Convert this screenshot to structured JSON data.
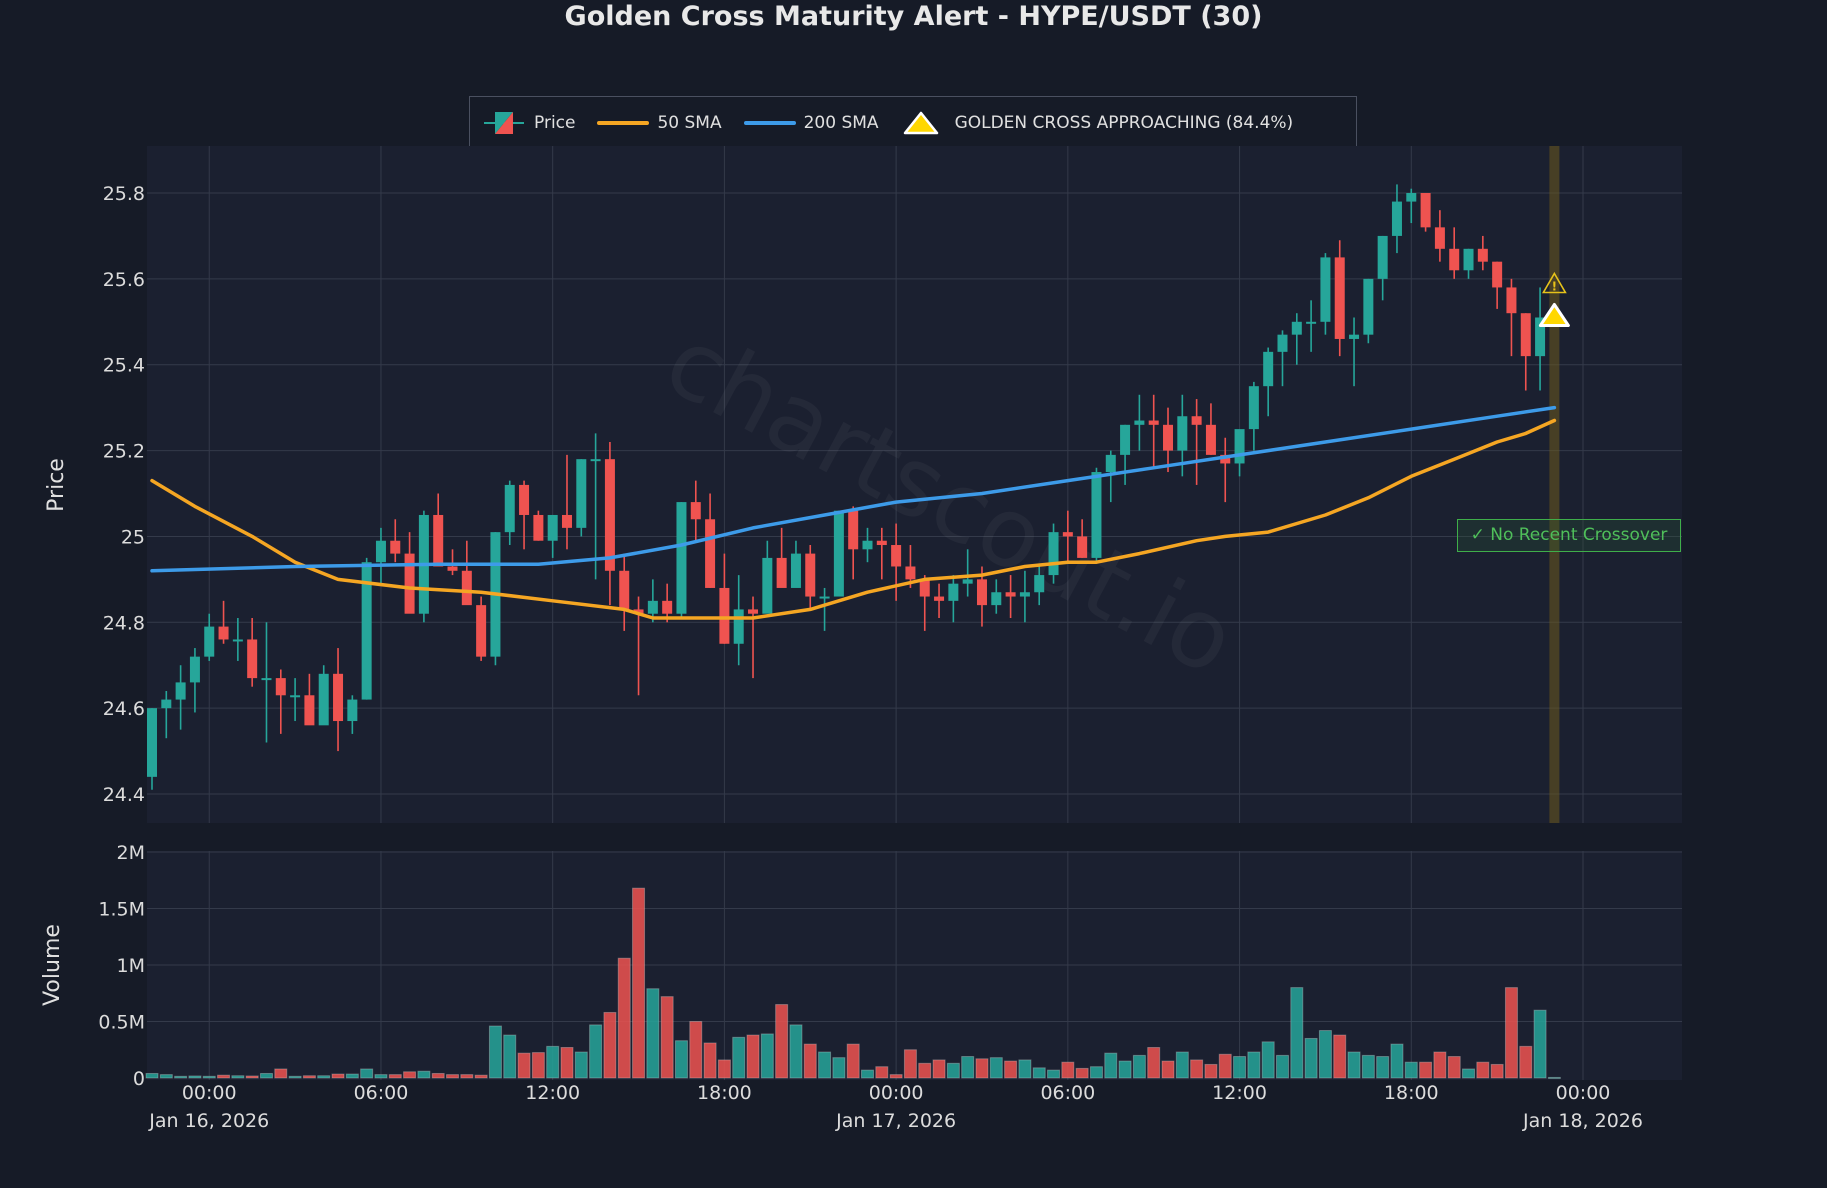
{
  "title": "Golden Cross Maturity Alert - HYPE/USDT (30)",
  "legend": {
    "price_label": "Price",
    "sma50_label": "50 SMA",
    "sma200_label": "200 SMA",
    "signal_label": "GOLDEN CROSS APPROACHING (84.4%)"
  },
  "annotation": {
    "no_crossover": "✓ No Recent Crossover",
    "warning_icon": "⚠"
  },
  "watermark": "chartscout.io",
  "colors": {
    "up": "#26a69a",
    "down": "#ef5350",
    "sma50": "#f5a623",
    "sma200": "#3d9be9",
    "signal": "#ffd700",
    "background": "#161b27",
    "plot_bg": "#1b2030"
  },
  "chart_data": {
    "type": "candlestick",
    "title": "Golden Cross Maturity Alert - HYPE/USDT (30)",
    "xlabel": "",
    "ylabel": "Price",
    "ylabel_volume": "Volume",
    "ylim": [
      24.35,
      25.9
    ],
    "volume_ylim": [
      0,
      2000000
    ],
    "y_ticks": [
      "24.4",
      "24.6",
      "24.8",
      "25",
      "25.2",
      "25.4",
      "25.6",
      "25.8"
    ],
    "volume_ticks": [
      "0",
      "0.5M",
      "1M",
      "1.5M",
      "2M"
    ],
    "x_ticks": [
      {
        "label": "00:00",
        "sub": "Jan 16, 2026"
      },
      {
        "label": "06:00",
        "sub": ""
      },
      {
        "label": "12:00",
        "sub": ""
      },
      {
        "label": "18:00",
        "sub": ""
      },
      {
        "label": "00:00",
        "sub": "Jan 17, 2026"
      },
      {
        "label": "06:00",
        "sub": ""
      },
      {
        "label": "12:00",
        "sub": ""
      },
      {
        "label": "18:00",
        "sub": ""
      },
      {
        "label": "00:00",
        "sub": "Jan 18, 2026"
      }
    ],
    "interval": "30m",
    "start": "2026-01-15 22:00",
    "legend_position": "top",
    "grid": true,
    "candles": [
      [
        24.44,
        24.6,
        24.41,
        24.6,
        40000
      ],
      [
        24.6,
        24.64,
        24.53,
        24.62,
        30000
      ],
      [
        24.62,
        24.7,
        24.55,
        24.66,
        15000
      ],
      [
        24.66,
        24.74,
        24.59,
        24.72,
        18000
      ],
      [
        24.72,
        24.82,
        24.71,
        24.79,
        15000
      ],
      [
        24.79,
        24.85,
        24.75,
        24.76,
        25000
      ],
      [
        24.76,
        24.81,
        24.71,
        24.76,
        20000
      ],
      [
        24.76,
        24.81,
        24.65,
        24.67,
        18000
      ],
      [
        24.67,
        24.8,
        24.52,
        24.67,
        40000
      ],
      [
        24.67,
        24.69,
        24.54,
        24.63,
        80000
      ],
      [
        24.63,
        24.67,
        24.57,
        24.63,
        15000
      ],
      [
        24.63,
        24.68,
        24.58,
        24.56,
        20000
      ],
      [
        24.56,
        24.7,
        24.57,
        24.68,
        20000
      ],
      [
        24.68,
        24.74,
        24.5,
        24.57,
        35000
      ],
      [
        24.57,
        24.63,
        24.54,
        24.62,
        35000
      ],
      [
        24.62,
        24.95,
        24.62,
        24.94,
        80000
      ],
      [
        24.94,
        25.02,
        24.89,
        24.99,
        30000
      ],
      [
        24.99,
        25.04,
        24.94,
        24.96,
        30000
      ],
      [
        24.96,
        25.01,
        24.86,
        24.82,
        55000
      ],
      [
        24.82,
        25.06,
        24.8,
        25.05,
        60000
      ],
      [
        25.05,
        25.1,
        24.95,
        24.93,
        40000
      ],
      [
        24.93,
        24.97,
        24.91,
        24.92,
        30000
      ],
      [
        24.92,
        24.99,
        24.86,
        24.84,
        30000
      ],
      [
        24.84,
        24.86,
        24.71,
        24.72,
        25000
      ],
      [
        24.72,
        25.01,
        24.7,
        25.01,
        460000
      ],
      [
        25.01,
        25.13,
        24.98,
        25.12,
        380000
      ],
      [
        25.12,
        25.13,
        24.97,
        25.05,
        220000
      ],
      [
        25.05,
        25.06,
        24.99,
        24.99,
        225000
      ],
      [
        24.99,
        25.05,
        24.95,
        25.05,
        280000
      ],
      [
        25.05,
        25.19,
        24.97,
        25.02,
        270000
      ],
      [
        25.02,
        25.18,
        25.0,
        25.18,
        230000
      ],
      [
        25.18,
        25.24,
        24.9,
        25.18,
        470000
      ],
      [
        25.18,
        25.22,
        24.84,
        24.92,
        580000
      ],
      [
        24.92,
        24.96,
        24.78,
        24.83,
        1060000
      ],
      [
        24.83,
        24.86,
        24.63,
        24.82,
        1680000
      ],
      [
        24.82,
        24.9,
        24.8,
        24.85,
        790000
      ],
      [
        24.85,
        24.89,
        24.8,
        24.82,
        720000
      ],
      [
        24.82,
        25.08,
        24.81,
        25.08,
        330000
      ],
      [
        25.08,
        25.13,
        24.99,
        25.04,
        500000
      ],
      [
        25.04,
        25.1,
        24.88,
        24.88,
        310000
      ],
      [
        24.88,
        24.96,
        24.75,
        24.75,
        160000
      ],
      [
        24.75,
        24.91,
        24.7,
        24.83,
        360000
      ],
      [
        24.83,
        24.86,
        24.67,
        24.82,
        380000
      ],
      [
        24.82,
        24.99,
        24.83,
        24.95,
        390000
      ],
      [
        24.95,
        25.02,
        24.9,
        24.88,
        650000
      ],
      [
        24.88,
        24.99,
        24.89,
        24.96,
        470000
      ],
      [
        24.96,
        24.98,
        24.83,
        24.86,
        300000
      ],
      [
        24.86,
        24.88,
        24.78,
        24.86,
        230000
      ],
      [
        24.86,
        25.06,
        24.87,
        25.06,
        180000
      ],
      [
        25.06,
        25.07,
        24.9,
        24.97,
        300000
      ],
      [
        24.97,
        25.02,
        24.94,
        24.99,
        70000
      ],
      [
        24.99,
        25.02,
        24.9,
        24.98,
        100000
      ],
      [
        24.98,
        25.03,
        24.85,
        24.93,
        30000
      ],
      [
        24.93,
        24.98,
        24.88,
        24.9,
        250000
      ],
      [
        24.9,
        24.91,
        24.78,
        24.86,
        130000
      ],
      [
        24.86,
        24.89,
        24.81,
        24.85,
        160000
      ],
      [
        24.85,
        24.91,
        24.8,
        24.89,
        130000
      ],
      [
        24.89,
        24.97,
        24.86,
        24.9,
        190000
      ],
      [
        24.9,
        24.93,
        24.79,
        24.84,
        170000
      ],
      [
        24.84,
        24.9,
        24.82,
        24.87,
        180000
      ],
      [
        24.87,
        24.91,
        24.81,
        24.86,
        150000
      ],
      [
        24.86,
        24.92,
        24.8,
        24.87,
        160000
      ],
      [
        24.87,
        24.93,
        24.84,
        24.91,
        90000
      ],
      [
        24.91,
        25.03,
        24.89,
        25.01,
        70000
      ],
      [
        25.01,
        25.06,
        24.94,
        25.0,
        140000
      ],
      [
        25.0,
        25.04,
        24.95,
        24.95,
        85000
      ],
      [
        24.95,
        25.16,
        24.94,
        25.15,
        100000
      ],
      [
        25.15,
        25.2,
        25.08,
        25.19,
        220000
      ],
      [
        25.19,
        25.26,
        25.12,
        25.26,
        150000
      ],
      [
        25.26,
        25.33,
        25.2,
        25.27,
        200000
      ],
      [
        25.27,
        25.33,
        25.16,
        25.26,
        270000
      ],
      [
        25.26,
        25.3,
        25.15,
        25.2,
        150000
      ],
      [
        25.2,
        25.33,
        25.14,
        25.28,
        230000
      ],
      [
        25.28,
        25.32,
        25.12,
        25.26,
        160000
      ],
      [
        25.26,
        25.31,
        25.19,
        25.19,
        120000
      ],
      [
        25.19,
        25.23,
        25.08,
        25.17,
        210000
      ],
      [
        25.17,
        25.24,
        25.14,
        25.25,
        190000
      ],
      [
        25.25,
        25.36,
        25.2,
        25.35,
        230000
      ],
      [
        25.35,
        25.44,
        25.28,
        25.43,
        320000
      ],
      [
        25.43,
        25.48,
        25.35,
        25.47,
        200000
      ],
      [
        25.47,
        25.52,
        25.4,
        25.5,
        800000
      ],
      [
        25.5,
        25.55,
        25.43,
        25.5,
        350000
      ],
      [
        25.5,
        25.66,
        25.47,
        25.65,
        420000
      ],
      [
        25.65,
        25.69,
        25.42,
        25.46,
        380000
      ],
      [
        25.46,
        25.51,
        25.35,
        25.47,
        230000
      ],
      [
        25.47,
        25.6,
        25.45,
        25.6,
        200000
      ],
      [
        25.6,
        25.7,
        25.55,
        25.7,
        190000
      ],
      [
        25.7,
        25.82,
        25.66,
        25.78,
        300000
      ],
      [
        25.78,
        25.81,
        25.73,
        25.8,
        140000
      ],
      [
        25.8,
        25.8,
        25.71,
        25.72,
        140000
      ],
      [
        25.72,
        25.76,
        25.64,
        25.67,
        230000
      ],
      [
        25.67,
        25.72,
        25.6,
        25.62,
        190000
      ],
      [
        25.62,
        25.67,
        25.6,
        25.67,
        80000
      ],
      [
        25.67,
        25.7,
        25.62,
        25.64,
        140000
      ],
      [
        25.64,
        25.64,
        25.53,
        25.58,
        120000
      ],
      [
        25.58,
        25.6,
        25.42,
        25.52,
        800000
      ],
      [
        25.52,
        25.52,
        25.34,
        25.42,
        280000
      ],
      [
        25.42,
        25.58,
        25.34,
        25.51,
        600000
      ],
      [
        25.51,
        25.51,
        25.51,
        25.51,
        5000
      ]
    ],
    "sma50": [
      [
        0,
        25.13
      ],
      [
        3,
        25.07
      ],
      [
        7,
        25.0
      ],
      [
        10,
        24.94
      ],
      [
        13,
        24.9
      ],
      [
        18,
        24.88
      ],
      [
        23,
        24.87
      ],
      [
        28,
        24.85
      ],
      [
        33,
        24.83
      ],
      [
        35,
        24.81
      ],
      [
        42,
        24.81
      ],
      [
        46,
        24.83
      ],
      [
        50,
        24.87
      ],
      [
        54,
        24.9
      ],
      [
        58,
        24.91
      ],
      [
        61,
        24.93
      ],
      [
        64,
        24.94
      ],
      [
        66,
        24.94
      ],
      [
        69,
        24.96
      ],
      [
        73,
        24.99
      ],
      [
        75,
        25.0
      ],
      [
        78,
        25.01
      ],
      [
        82,
        25.05
      ],
      [
        85,
        25.09
      ],
      [
        88,
        25.14
      ],
      [
        91,
        25.18
      ],
      [
        94,
        25.22
      ],
      [
        96,
        25.24
      ],
      [
        98,
        25.27
      ]
    ],
    "sma200": [
      [
        0,
        24.92
      ],
      [
        10,
        24.93
      ],
      [
        20,
        24.935
      ],
      [
        27,
        24.935
      ],
      [
        32,
        24.95
      ],
      [
        37,
        24.98
      ],
      [
        42,
        25.02
      ],
      [
        47,
        25.05
      ],
      [
        52,
        25.08
      ],
      [
        58,
        25.1
      ],
      [
        64,
        25.13
      ],
      [
        70,
        25.16
      ],
      [
        76,
        25.19
      ],
      [
        82,
        25.22
      ],
      [
        88,
        25.25
      ],
      [
        94,
        25.28
      ],
      [
        98,
        25.3
      ]
    ],
    "signal_marker": {
      "index": 98,
      "price": 25.51,
      "label": "GOLDEN CROSS APPROACHING (84.4%)"
    },
    "highlight_band_index": 98,
    "annotation": "✓ No Recent Crossover"
  }
}
